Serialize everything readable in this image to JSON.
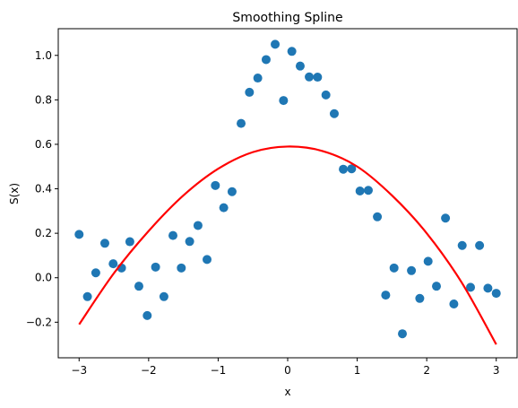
{
  "chart_data": {
    "type": "scatter",
    "title": "Smoothing Spline",
    "xlabel": "x",
    "ylabel": "S(x)",
    "xlim": [
      -3.3,
      3.3
    ],
    "ylim": [
      -0.36,
      1.12
    ],
    "xticks": [
      -3,
      -2,
      -1,
      0,
      1,
      2,
      3
    ],
    "xtick_labels": [
      "−3",
      "−2",
      "−1",
      "0",
      "1",
      "2",
      "3"
    ],
    "yticks": [
      -0.2,
      0.0,
      0.2,
      0.4,
      0.6,
      0.8,
      1.0
    ],
    "ytick_labels": [
      "−0.2",
      "0.0",
      "0.2",
      "0.4",
      "0.6",
      "0.8",
      "1.0"
    ],
    "grid": false,
    "series": [
      {
        "kind": "scatter",
        "color": "#1f77b4",
        "x": [
          -3.0,
          -2.88,
          -2.76,
          -2.63,
          -2.51,
          -2.39,
          -2.27,
          -2.14,
          -2.02,
          -1.9,
          -1.78,
          -1.65,
          -1.53,
          -1.41,
          -1.29,
          -1.16,
          -1.04,
          -0.92,
          -0.8,
          -0.67,
          -0.55,
          -0.43,
          -0.31,
          -0.18,
          -0.06,
          0.06,
          0.18,
          0.31,
          0.43,
          0.55,
          0.67,
          0.8,
          0.92,
          1.04,
          1.16,
          1.29,
          1.41,
          1.53,
          1.65,
          1.78,
          1.9,
          2.02,
          2.14,
          2.27,
          2.39,
          2.51,
          2.63,
          2.76,
          2.88,
          3.0
        ],
        "y": [
          0.195,
          -0.085,
          0.022,
          0.155,
          0.063,
          0.044,
          0.162,
          -0.038,
          -0.17,
          0.048,
          -0.085,
          0.19,
          0.044,
          0.163,
          0.235,
          0.082,
          0.415,
          0.315,
          0.387,
          0.694,
          0.834,
          0.898,
          0.981,
          1.05,
          0.797,
          1.018,
          0.952,
          0.903,
          0.902,
          0.822,
          0.738,
          0.488,
          0.49,
          0.39,
          0.393,
          0.274,
          -0.078,
          0.044,
          -0.252,
          0.032,
          -0.093,
          0.074,
          -0.038,
          0.268,
          -0.118,
          0.145,
          -0.043,
          0.145,
          -0.047,
          -0.07
        ]
      },
      {
        "kind": "line",
        "color": "#ff0000",
        "x": [
          -3.0,
          -2.5,
          -2.0,
          -1.5,
          -1.0,
          -0.5,
          0.0,
          0.5,
          1.0,
          1.5,
          2.0,
          2.5,
          3.0
        ],
        "y": [
          -0.21,
          0.02,
          0.21,
          0.37,
          0.49,
          0.565,
          0.59,
          0.57,
          0.5,
          0.37,
          0.2,
          -0.02,
          -0.3
        ]
      }
    ]
  }
}
